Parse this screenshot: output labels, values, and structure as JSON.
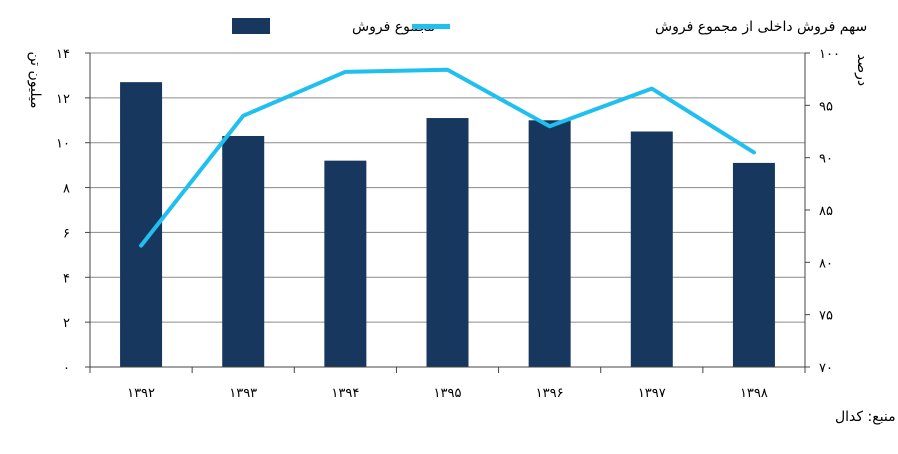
{
  "chart_data": {
    "type": "bar",
    "categories": [
      "۱۳۹۲",
      "۱۳۹۳",
      "۱۳۹۴",
      "۱۳۹۵",
      "۱۳۹۶",
      "۱۳۹۷",
      "۱۳۹۸"
    ],
    "series": [
      {
        "name": "مجموع فروش",
        "type": "bar",
        "axis": "left",
        "color": "#17375e",
        "values": [
          12.7,
          10.3,
          9.2,
          11.1,
          11.0,
          10.5,
          9.1
        ]
      },
      {
        "name": "سهم فروش داخلی از مجموع فروش",
        "type": "line",
        "axis": "right",
        "color": "#1fbfef",
        "values": [
          81.6,
          94.0,
          98.2,
          98.4,
          93.0,
          96.6,
          90.5
        ]
      }
    ],
    "y_left": {
      "label": "میلیون تن",
      "min": 0,
      "max": 14,
      "ticks": [
        "۰",
        "۲",
        "۴",
        "۶",
        "۸",
        "۱۰",
        "۱۲",
        "۱۴"
      ]
    },
    "y_right": {
      "label": "درصد",
      "min": 70,
      "max": 100,
      "ticks": [
        "۷۰",
        "۷۵",
        "۸۰",
        "۸۵",
        "۹۰",
        "۹۵",
        "۱۰۰"
      ]
    },
    "grid": true,
    "legend": "top-center",
    "source": "منبع: کدال"
  }
}
